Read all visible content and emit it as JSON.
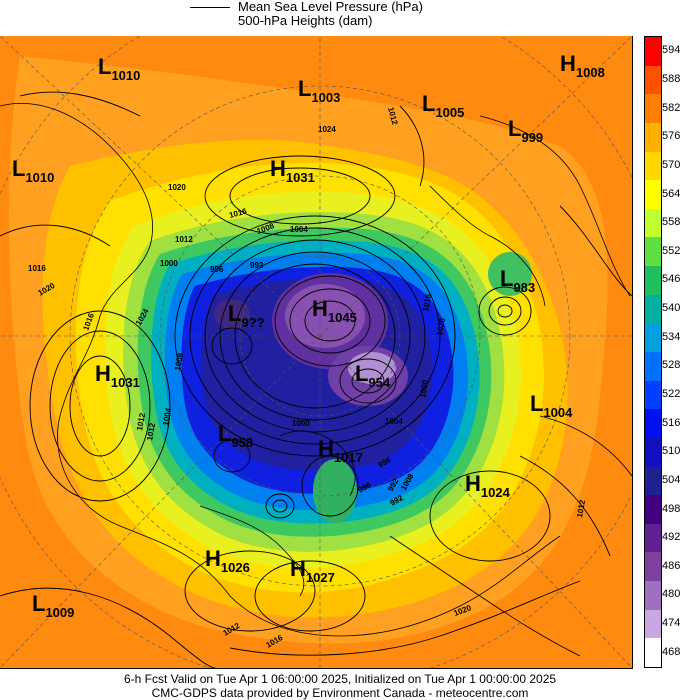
{
  "legend": {
    "line1": "Mean Sea Level Pressure (hPa)",
    "line2": "500-hPa Heights (dam)"
  },
  "colorbar": {
    "labels": [
      "594",
      "588",
      "582",
      "576",
      "570",
      "564",
      "558",
      "552",
      "546",
      "540",
      "534",
      "528",
      "522",
      "516",
      "510",
      "504",
      "498",
      "492",
      "486",
      "480",
      "474",
      "468"
    ],
    "colors": [
      "#ff0000",
      "#ff5000",
      "#ff8000",
      "#ffb000",
      "#ffd800",
      "#ffff00",
      "#c0ff30",
      "#60e040",
      "#20c060",
      "#00b0a0",
      "#00a0e0",
      "#0070ff",
      "#0040ff",
      "#0010f0",
      "#1010c0",
      "#202090",
      "#400080",
      "#602090",
      "#8040a0",
      "#a070c0",
      "#c8a8e0",
      "#ffffff"
    ]
  },
  "map": {
    "systems": [
      {
        "type": "L",
        "value": "1010"
      },
      {
        "type": "L",
        "value": "1003"
      },
      {
        "type": "L",
        "value": "1005"
      },
      {
        "type": "H",
        "value": "1008"
      },
      {
        "type": "L",
        "value": "999"
      },
      {
        "type": "L",
        "value": "1010"
      },
      {
        "type": "H",
        "value": "1031"
      },
      {
        "type": "L",
        "value": "983"
      },
      {
        "type": "L",
        "value": "9??"
      },
      {
        "type": "H",
        "value": "1045"
      },
      {
        "type": "H",
        "value": "1031"
      },
      {
        "type": "L",
        "value": "954"
      },
      {
        "type": "L",
        "value": "1004"
      },
      {
        "type": "L",
        "value": "958"
      },
      {
        "type": "H",
        "value": "1017"
      },
      {
        "type": "H",
        "value": "1024"
      },
      {
        "type": "H",
        "value": "1026"
      },
      {
        "type": "H",
        "value": "1027"
      },
      {
        "type": "L",
        "value": "1009"
      }
    ],
    "isobar_labels": [
      "1012",
      "1024",
      "1020",
      "1016",
      "1012",
      "1008",
      "1004",
      "1000",
      "996",
      "992",
      "1020",
      "1016",
      "1016",
      "1024",
      "1012",
      "1004",
      "1012",
      "1008",
      "1000",
      "1004",
      "996",
      "992",
      "1016",
      "1012",
      "1020",
      "1020",
      "1016",
      "1012",
      "1000",
      "1008",
      "996",
      "992"
    ]
  },
  "footer": {
    "line1": "6-h Fcst Valid on Tue Apr  1 06:00:00 2025, Initialized on Tue Apr  1 00:00:00 2025",
    "line2": "CMC-GDPS data provided by Environment Canada - meteocentre.com"
  }
}
